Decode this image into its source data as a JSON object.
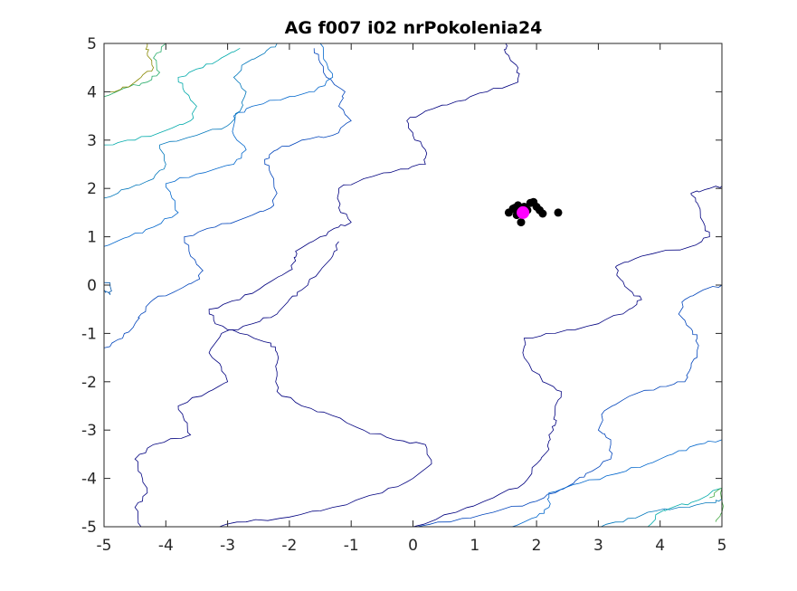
{
  "chart_data": {
    "type": "scatter",
    "title": "AG f007 i02 nrPokolenia24",
    "xlabel": "",
    "ylabel": "",
    "xlim": [
      -5,
      5
    ],
    "ylim": [
      -5,
      5
    ],
    "grid": false,
    "x_ticks": [
      -5,
      -4,
      -3,
      -2,
      -1,
      0,
      1,
      2,
      3,
      4,
      5
    ],
    "y_ticks": [
      -5,
      -4,
      -3,
      -2,
      -1,
      0,
      1,
      2,
      3,
      4,
      5
    ],
    "x_tick_labels": [
      "-5",
      "-4",
      "-3",
      "-2",
      "-1",
      "0",
      "1",
      "2",
      "3",
      "4",
      "5"
    ],
    "y_tick_labels": [
      "-5",
      "-4",
      "-3",
      "-2",
      "-1",
      "0",
      "1",
      "2",
      "3",
      "4",
      "5"
    ],
    "contours": [
      {
        "color": "#00007f",
        "points": [
          [
            0.0,
            -5.0
          ],
          [
            0.7,
            -4.7
          ],
          [
            1.3,
            -4.4
          ],
          [
            1.8,
            -4.1
          ],
          [
            2.0,
            -3.7
          ],
          [
            2.2,
            -3.4
          ],
          [
            2.2,
            -3.1
          ],
          [
            2.3,
            -2.9
          ],
          [
            2.3,
            -2.6
          ],
          [
            2.4,
            -2.2
          ],
          [
            2.1,
            -2.0
          ],
          [
            1.8,
            -1.5
          ],
          [
            1.8,
            -1.1
          ],
          [
            2.3,
            -1.0
          ],
          [
            3.0,
            -0.8
          ],
          [
            3.5,
            -0.5
          ],
          [
            3.7,
            -0.3
          ],
          [
            3.5,
            -0.1
          ],
          [
            3.3,
            0.2
          ],
          [
            3.3,
            0.4
          ],
          [
            3.7,
            0.6
          ],
          [
            4.5,
            0.8
          ],
          [
            4.8,
            1.0
          ],
          [
            4.7,
            1.3
          ],
          [
            4.6,
            1.7
          ],
          [
            4.5,
            1.9
          ],
          [
            4.8,
            2.0
          ],
          [
            5.0,
            2.05
          ]
        ]
      },
      {
        "color": "#00007f",
        "points": [
          [
            -3.3,
            -5.0
          ],
          [
            -2.7,
            -4.9
          ],
          [
            -2.0,
            -4.8
          ],
          [
            -1.3,
            -4.6
          ],
          [
            -0.5,
            -4.3
          ],
          [
            0.0,
            -4.0
          ],
          [
            0.3,
            -3.7
          ],
          [
            0.2,
            -3.3
          ],
          [
            -0.3,
            -3.2
          ],
          [
            -0.8,
            -3.0
          ],
          [
            -1.3,
            -2.7
          ],
          [
            -1.8,
            -2.5
          ],
          [
            -2.2,
            -2.2
          ],
          [
            -2.2,
            -1.8
          ],
          [
            -2.2,
            -1.4
          ],
          [
            -2.3,
            -1.2
          ],
          [
            -2.8,
            -1.0
          ],
          [
            -3.2,
            -0.8
          ],
          [
            -3.3,
            -0.5
          ],
          [
            -2.8,
            -0.3
          ],
          [
            -2.4,
            0.0
          ],
          [
            -2.0,
            0.3
          ],
          [
            -1.9,
            0.5
          ],
          [
            -1.9,
            0.7
          ],
          [
            -1.5,
            1.0
          ],
          [
            -1.2,
            1.2
          ],
          [
            -1.0,
            1.3
          ],
          [
            -1.2,
            1.6
          ],
          [
            -1.2,
            2.0
          ],
          [
            -0.8,
            2.2
          ],
          [
            -0.2,
            2.4
          ],
          [
            0.2,
            2.5
          ],
          [
            0.2,
            2.8
          ],
          [
            0.0,
            3.1
          ],
          [
            -0.1,
            3.4
          ],
          [
            0.2,
            3.6
          ],
          [
            0.7,
            3.8
          ],
          [
            1.2,
            4.0
          ],
          [
            1.7,
            4.2
          ],
          [
            1.7,
            4.5
          ],
          [
            1.5,
            4.8
          ],
          [
            1.5,
            5.0
          ]
        ]
      },
      {
        "color": "#00007f",
        "points": [
          [
            -4.4,
            -5.0
          ],
          [
            -4.5,
            -4.6
          ],
          [
            -4.3,
            -4.3
          ],
          [
            -4.4,
            -3.9
          ],
          [
            -4.5,
            -3.6
          ],
          [
            -4.2,
            -3.3
          ],
          [
            -3.6,
            -3.1
          ],
          [
            -3.7,
            -2.8
          ],
          [
            -3.8,
            -2.5
          ],
          [
            -3.3,
            -2.2
          ],
          [
            -3.0,
            -2.0
          ],
          [
            -3.1,
            -1.7
          ],
          [
            -3.3,
            -1.4
          ],
          [
            -3.1,
            -1.0
          ],
          [
            -2.6,
            -0.8
          ],
          [
            -2.2,
            -0.6
          ],
          [
            -2.0,
            -0.3
          ],
          [
            -1.8,
            -0.1
          ],
          [
            -1.5,
            0.3
          ],
          [
            -1.3,
            0.6
          ],
          [
            -1.2,
            0.9
          ]
        ]
      },
      {
        "color": "#0044bb",
        "points": [
          [
            -0.1,
            -5.0
          ],
          [
            0.6,
            -4.9
          ],
          [
            1.3,
            -4.7
          ],
          [
            1.9,
            -4.5
          ],
          [
            2.3,
            -4.3
          ],
          [
            2.6,
            -4.1
          ],
          [
            2.8,
            -3.9
          ],
          [
            3.2,
            -3.6
          ],
          [
            3.2,
            -3.2
          ],
          [
            3.0,
            -3.0
          ],
          [
            3.1,
            -2.6
          ],
          [
            3.5,
            -2.3
          ],
          [
            4.0,
            -2.1
          ],
          [
            4.4,
            -2.0
          ],
          [
            4.5,
            -1.7
          ],
          [
            4.6,
            -1.4
          ],
          [
            4.6,
            -1.1
          ],
          [
            4.5,
            -0.9
          ],
          [
            4.3,
            -0.6
          ],
          [
            4.4,
            -0.3
          ],
          [
            4.7,
            -0.1
          ],
          [
            5.0,
            0.0
          ]
        ]
      },
      {
        "color": "#0044bb",
        "points": [
          [
            -5.0,
            -1.3
          ],
          [
            -4.7,
            -1.1
          ],
          [
            -4.5,
            -0.8
          ],
          [
            -4.4,
            -0.6
          ],
          [
            -4.2,
            -0.3
          ],
          [
            -3.8,
            -0.1
          ],
          [
            -3.5,
            0.1
          ],
          [
            -3.4,
            0.3
          ],
          [
            -3.6,
            0.6
          ],
          [
            -3.7,
            1.0
          ],
          [
            -3.2,
            1.2
          ],
          [
            -2.7,
            1.4
          ],
          [
            -2.3,
            1.6
          ],
          [
            -2.2,
            1.9
          ],
          [
            -2.3,
            2.3
          ],
          [
            -2.4,
            2.6
          ],
          [
            -2.2,
            2.8
          ],
          [
            -1.8,
            3.0
          ],
          [
            -1.3,
            3.1
          ],
          [
            -1.0,
            3.4
          ],
          [
            -1.2,
            3.7
          ],
          [
            -1.1,
            4.0
          ],
          [
            -1.4,
            4.3
          ],
          [
            -1.5,
            4.6
          ],
          [
            -1.6,
            4.9
          ]
        ]
      },
      {
        "color": "#0066cc",
        "points": [
          [
            -5.0,
            0.8
          ],
          [
            -4.6,
            1.0
          ],
          [
            -4.2,
            1.2
          ],
          [
            -3.8,
            1.5
          ],
          [
            -3.9,
            1.8
          ],
          [
            -4.0,
            2.1
          ],
          [
            -3.5,
            2.3
          ],
          [
            -2.9,
            2.5
          ],
          [
            -2.7,
            2.8
          ],
          [
            -2.9,
            3.1
          ],
          [
            -2.9,
            3.5
          ],
          [
            -2.6,
            3.7
          ],
          [
            -2.0,
            3.9
          ],
          [
            -1.6,
            4.0
          ],
          [
            -1.3,
            4.3
          ],
          [
            -1.4,
            4.6
          ],
          [
            -1.5,
            5.0
          ]
        ]
      },
      {
        "color": "#0077bb",
        "points": [
          [
            -5.0,
            1.8
          ],
          [
            -4.6,
            2.0
          ],
          [
            -4.2,
            2.2
          ],
          [
            -4.0,
            2.5
          ],
          [
            -4.1,
            2.9
          ],
          [
            -3.5,
            3.1
          ],
          [
            -3.0,
            3.3
          ],
          [
            -2.8,
            3.6
          ],
          [
            -2.7,
            4.0
          ],
          [
            -2.9,
            4.3
          ],
          [
            -2.7,
            4.6
          ],
          [
            -2.4,
            4.8
          ],
          [
            -2.2,
            5.0
          ]
        ]
      },
      {
        "color": "#00aaaa",
        "points": [
          [
            -5.0,
            2.9
          ],
          [
            -4.5,
            3.0
          ],
          [
            -4.0,
            3.2
          ],
          [
            -3.6,
            3.4
          ],
          [
            -3.5,
            3.7
          ],
          [
            -3.7,
            4.0
          ],
          [
            -3.8,
            4.3
          ],
          [
            -3.4,
            4.5
          ],
          [
            -3.1,
            4.7
          ],
          [
            -2.8,
            4.9
          ]
        ]
      },
      {
        "color": "#22aa66",
        "points": [
          [
            -5.0,
            3.9
          ],
          [
            -4.6,
            4.1
          ],
          [
            -4.3,
            4.2
          ],
          [
            -4.1,
            4.4
          ],
          [
            -4.2,
            4.7
          ],
          [
            -4.0,
            5.0
          ]
        ]
      },
      {
        "color": "#888800",
        "points": [
          [
            -4.9,
            4.0
          ],
          [
            -4.6,
            4.1
          ],
          [
            -4.4,
            4.3
          ],
          [
            -4.2,
            4.5
          ],
          [
            -4.3,
            4.8
          ],
          [
            -4.3,
            5.0
          ]
        ]
      },
      {
        "color": "#0077bb",
        "points": [
          [
            2.9,
            -5.0
          ],
          [
            3.4,
            -4.9
          ],
          [
            3.8,
            -4.7
          ],
          [
            4.3,
            -4.6
          ],
          [
            4.9,
            -4.5
          ],
          [
            5.0,
            -4.4
          ]
        ]
      },
      {
        "color": "#0066cc",
        "points": [
          [
            1.6,
            -5.0
          ],
          [
            2.0,
            -4.8
          ],
          [
            2.2,
            -4.6
          ],
          [
            2.2,
            -4.3
          ],
          [
            2.7,
            -4.1
          ],
          [
            3.3,
            -3.9
          ],
          [
            3.8,
            -3.7
          ],
          [
            4.2,
            -3.5
          ],
          [
            4.6,
            -3.3
          ],
          [
            5.0,
            -3.2
          ]
        ]
      },
      {
        "color": "#00aaaa",
        "points": [
          [
            3.8,
            -5.0
          ],
          [
            4.0,
            -4.7
          ],
          [
            4.2,
            -4.6
          ],
          [
            4.5,
            -4.5
          ],
          [
            5.0,
            -4.2
          ]
        ]
      },
      {
        "color": "#44aa44",
        "points": [
          [
            4.8,
            -4.4
          ],
          [
            5.0,
            -4.2
          ],
          [
            5.0,
            -4.7
          ],
          [
            4.9,
            -4.9
          ]
        ]
      },
      {
        "color": "#0055aa",
        "points": [
          [
            -5.0,
            0.1
          ],
          [
            -4.9,
            0.0
          ],
          [
            -4.9,
            -0.2
          ],
          [
            -5.0,
            -0.1
          ]
        ]
      }
    ],
    "series": [
      {
        "name": "",
        "color": "#000000",
        "marker": "o",
        "points": [
          [
            1.55,
            1.5
          ],
          [
            1.65,
            1.6
          ],
          [
            1.7,
            1.65
          ],
          [
            1.8,
            1.62
          ],
          [
            1.9,
            1.7
          ],
          [
            1.95,
            1.72
          ],
          [
            1.85,
            1.55
          ],
          [
            2.05,
            1.55
          ],
          [
            2.1,
            1.48
          ],
          [
            1.75,
            1.3
          ],
          [
            2.35,
            1.5
          ],
          [
            1.68,
            1.45
          ],
          [
            1.62,
            1.58
          ],
          [
            2.0,
            1.62
          ]
        ]
      },
      {
        "name": "",
        "color": "#ff00ff",
        "marker": "o",
        "points": [
          [
            1.78,
            1.5
          ]
        ]
      }
    ]
  }
}
